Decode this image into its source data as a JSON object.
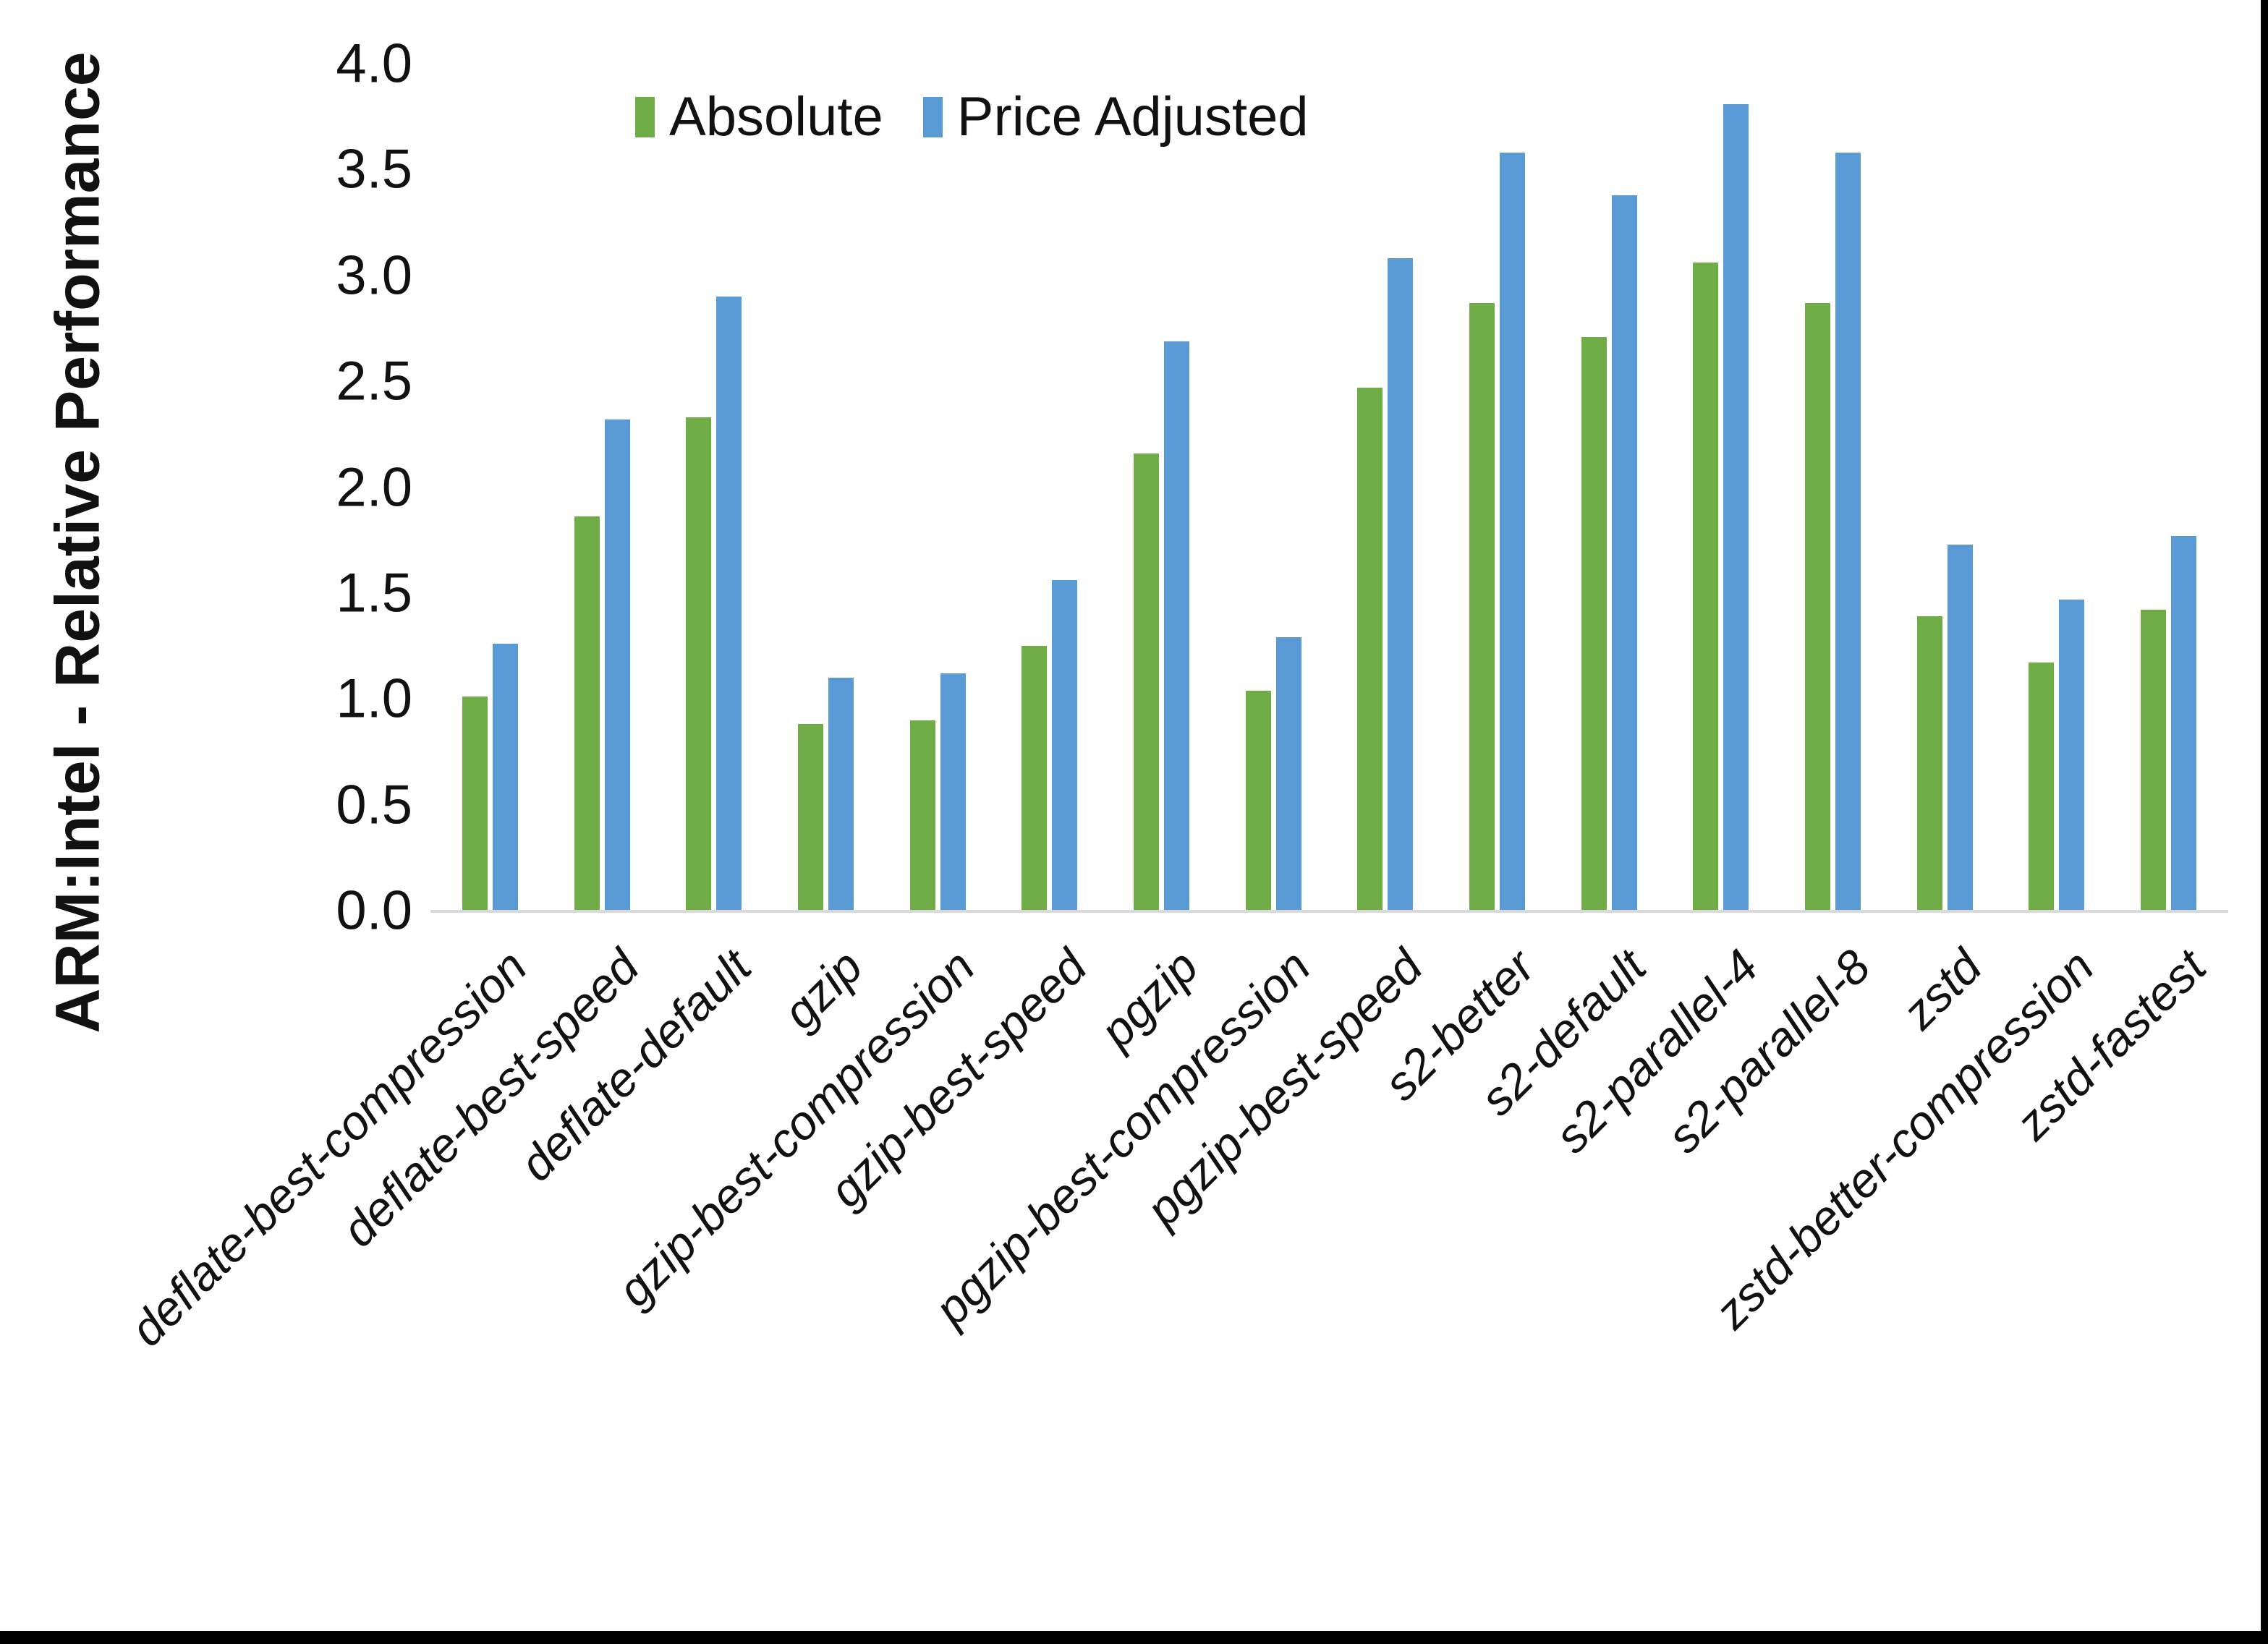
{
  "window": {
    "border_color": "#000000",
    "background": "#ffffff"
  },
  "chart_data": {
    "type": "bar",
    "title": "",
    "xlabel": "",
    "ylabel": "ARM:Intel - Relative Performance",
    "ylim": [
      0,
      4
    ],
    "ytick_step": 0.5,
    "ytick_labels": [
      "0.0",
      "0.5",
      "1.0",
      "1.5",
      "2.0",
      "2.5",
      "3.0",
      "3.5",
      "4.0"
    ],
    "grid": false,
    "legend_position": "top-center",
    "axis_line_color": "#d9d9d9",
    "text_color": "#111111",
    "categories": [
      "deflate-best-compression",
      "deflate-best-speed",
      "deflate-default",
      "gzip",
      "gzip-best-compression",
      "gzip-best-speed",
      "pgzip",
      "pgzip-best-compression",
      "pgzip-best-speed",
      "s2-better",
      "s2-default",
      "s2-parallel-4",
      "s2-parallel-8",
      "zstd",
      "zstd-better-compression",
      "zstd-fastest"
    ],
    "series": [
      {
        "name": "Absolute",
        "color": "#70AD47",
        "values": [
          1.01,
          1.86,
          2.33,
          0.88,
          0.9,
          1.25,
          2.16,
          1.04,
          2.47,
          2.87,
          2.71,
          3.06,
          2.87,
          1.39,
          1.17,
          1.42
        ]
      },
      {
        "name": "Price Adjusted",
        "color": "#5B9BD5",
        "values": [
          1.26,
          2.32,
          2.9,
          1.1,
          1.12,
          1.56,
          2.69,
          1.29,
          3.08,
          3.58,
          3.38,
          3.81,
          3.58,
          1.73,
          1.47,
          1.77
        ]
      }
    ]
  }
}
